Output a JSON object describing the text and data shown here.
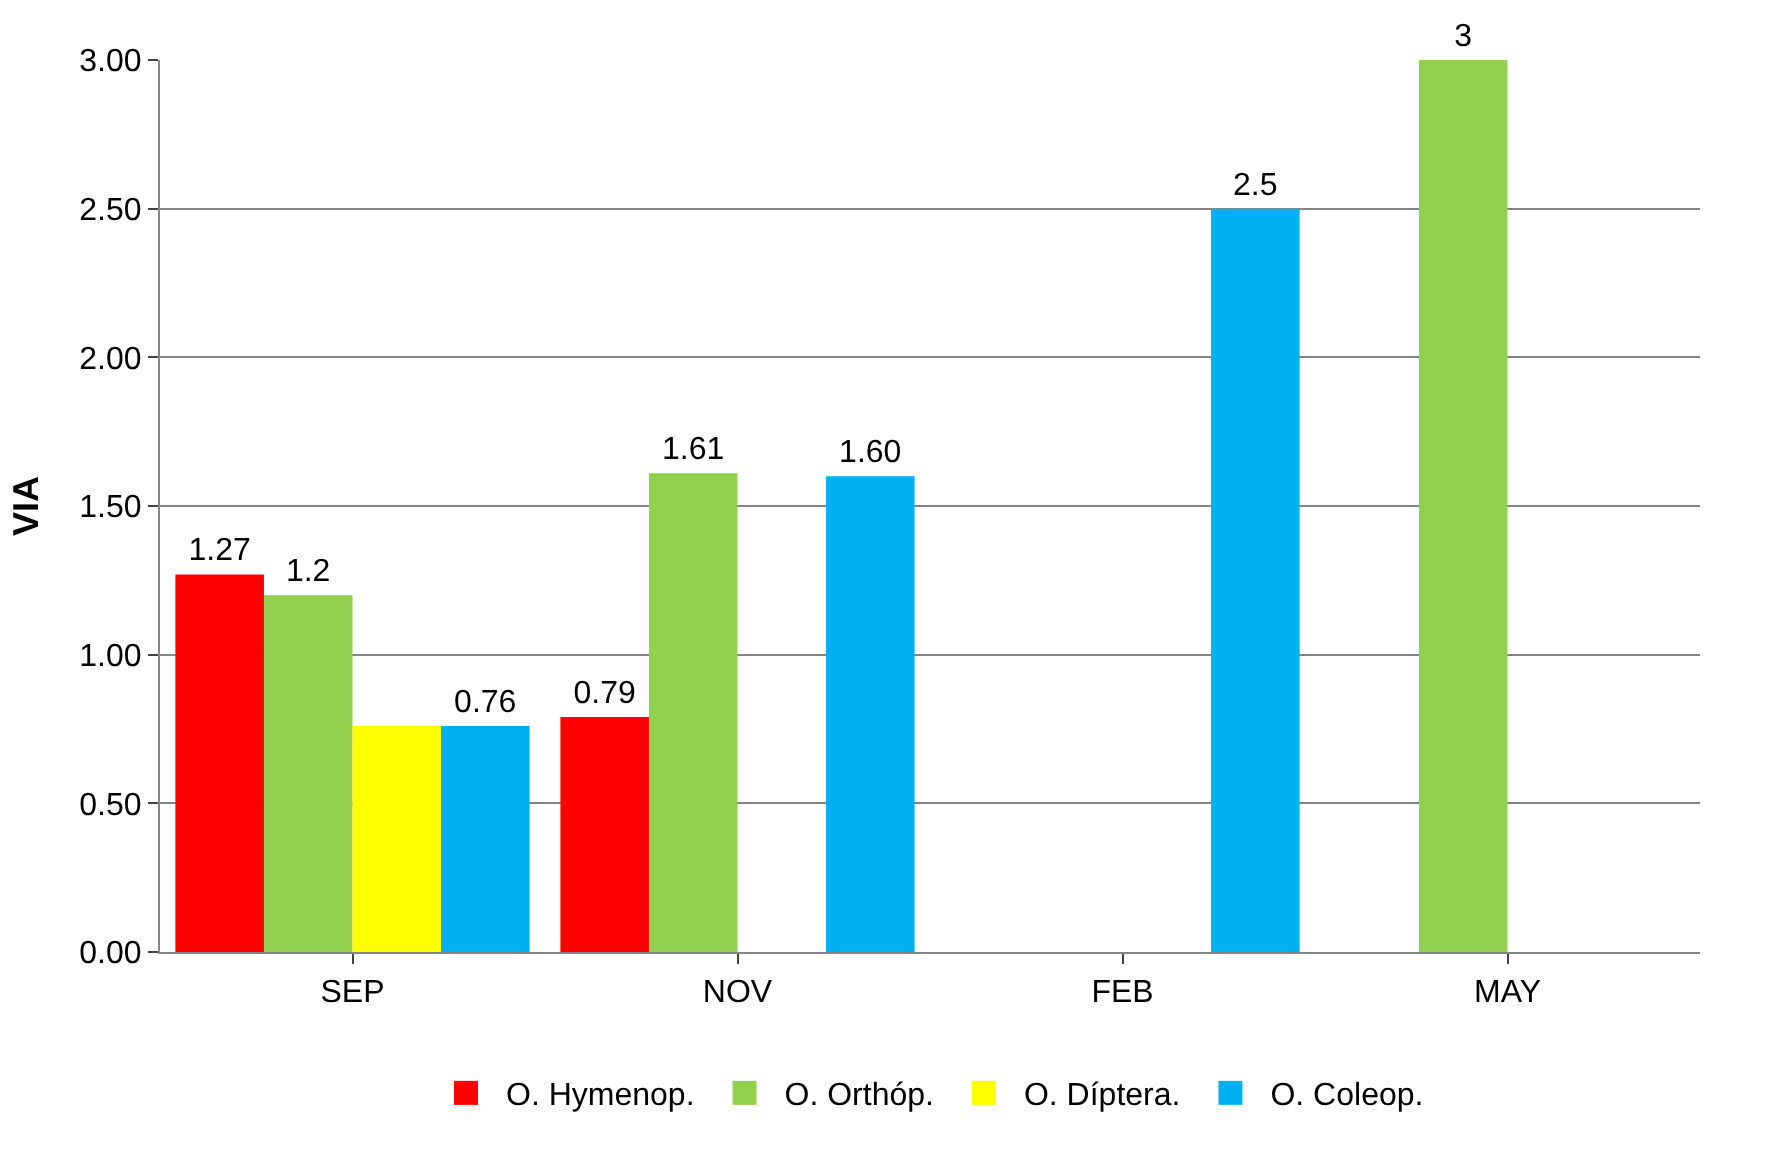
{
  "chart_data": {
    "type": "bar",
    "ylabel": "VIA",
    "categories": [
      "SEP",
      "NOV",
      "FEB",
      "MAY"
    ],
    "series": [
      {
        "name": "O. Hymenop.",
        "color": "#ff0000",
        "values": [
          1.27,
          0.79,
          null,
          null
        ],
        "value_labels": [
          "1.27",
          "0.79",
          null,
          null
        ]
      },
      {
        "name": "O. Orthóp.",
        "color": "#92d050",
        "values": [
          1.2,
          1.61,
          null,
          3
        ],
        "value_labels": [
          "1.2",
          "1.61",
          null,
          "3"
        ]
      },
      {
        "name": "O. Díptera.",
        "color": "#ffff00",
        "values": [
          0.76,
          null,
          null,
          null
        ],
        "value_labels": [
          null,
          null,
          null,
          null
        ]
      },
      {
        "name": "O. Coleop.",
        "color": "#00b0f0",
        "values": [
          0.76,
          1.6,
          2.5,
          null
        ],
        "value_labels": [
          "0.76",
          "1.60",
          "2.5",
          null
        ]
      }
    ],
    "ylim": [
      0,
      3.0
    ],
    "yticks": [
      {
        "value": 0,
        "label": "0.00"
      },
      {
        "value": 0.5,
        "label": "0.50"
      },
      {
        "value": 1,
        "label": "1.00"
      },
      {
        "value": 1.5,
        "label": "1.50"
      },
      {
        "value": 2,
        "label": "2.00"
      },
      {
        "value": 2.5,
        "label": "2.50"
      },
      {
        "value": 3,
        "label": "3.00"
      }
    ],
    "grid": "y",
    "legend": "bottom"
  }
}
